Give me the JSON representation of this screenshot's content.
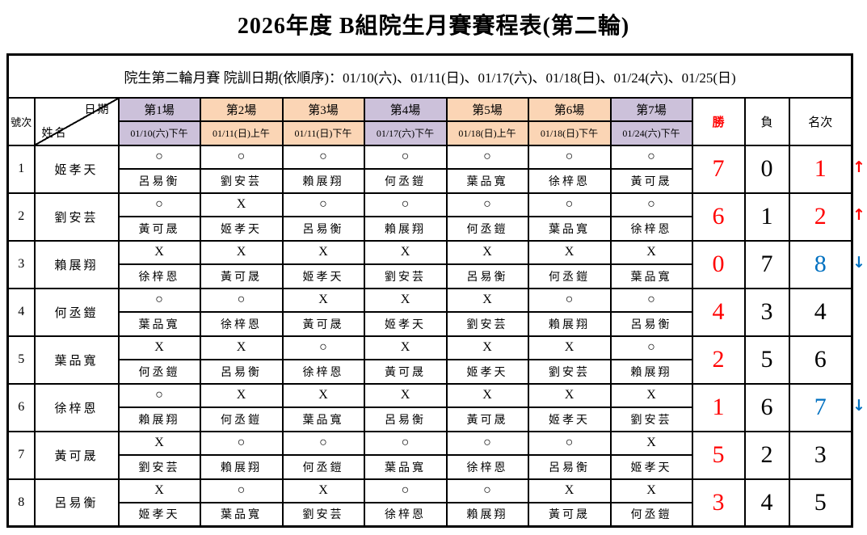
{
  "page": {
    "title": "2026年度 B組院生月賽賽程表(第二輪)",
    "subtitle": "院生第二輪月賽 院訓日期(依順序)：01/10(六)、01/11(日)、01/17(六)、01/18(日)、01/24(六)、01/25(日)"
  },
  "colors": {
    "saturday": "#ccc1da",
    "sunday": "#fbd5b5",
    "red": "#ff0000",
    "blue": "#0070c0",
    "black": "#000000"
  },
  "glyphs": {
    "win": "○",
    "loss": "X",
    "up": "↑",
    "down": "↓"
  },
  "table": {
    "corner": {
      "top_right": "日期",
      "bottom_left": "姓名"
    },
    "col_headers": {
      "number": "號次",
      "wins": "勝",
      "losses": "負",
      "rank": "名次"
    },
    "sessions": [
      {
        "label": "第1場",
        "date": "01/10(六)下午",
        "theme": "saturday"
      },
      {
        "label": "第2場",
        "date": "01/11(日)上午",
        "theme": "sunday"
      },
      {
        "label": "第3場",
        "date": "01/11(日)下午",
        "theme": "sunday"
      },
      {
        "label": "第4場",
        "date": "01/17(六)下午",
        "theme": "saturday"
      },
      {
        "label": "第5場",
        "date": "01/18(日)上午",
        "theme": "sunday"
      },
      {
        "label": "第6場",
        "date": "01/18(日)下午",
        "theme": "sunday"
      },
      {
        "label": "第7場",
        "date": "01/24(六)下午",
        "theme": "saturday"
      }
    ],
    "players": [
      {
        "no": "1",
        "name": "姬孝天",
        "games": [
          {
            "result": "○",
            "opponent": "呂易衡"
          },
          {
            "result": "○",
            "opponent": "劉安芸"
          },
          {
            "result": "○",
            "opponent": "賴展翔"
          },
          {
            "result": "○",
            "opponent": "何丞鎧"
          },
          {
            "result": "○",
            "opponent": "葉品寬"
          },
          {
            "result": "○",
            "opponent": "徐梓恩"
          },
          {
            "result": "○",
            "opponent": "黃可晟"
          }
        ],
        "wins": "7",
        "losses": "0",
        "rank": "1",
        "rank_color": "red",
        "arrow": "up"
      },
      {
        "no": "2",
        "name": "劉安芸",
        "games": [
          {
            "result": "○",
            "opponent": "黃可晟"
          },
          {
            "result": "X",
            "opponent": "姬孝天"
          },
          {
            "result": "○",
            "opponent": "呂易衡"
          },
          {
            "result": "○",
            "opponent": "賴展翔"
          },
          {
            "result": "○",
            "opponent": "何丞鎧"
          },
          {
            "result": "○",
            "opponent": "葉品寬"
          },
          {
            "result": "○",
            "opponent": "徐梓恩"
          }
        ],
        "wins": "6",
        "losses": "1",
        "rank": "2",
        "rank_color": "red",
        "arrow": "up"
      },
      {
        "no": "3",
        "name": "賴展翔",
        "games": [
          {
            "result": "X",
            "opponent": "徐梓恩"
          },
          {
            "result": "X",
            "opponent": "黃可晟"
          },
          {
            "result": "X",
            "opponent": "姬孝天"
          },
          {
            "result": "X",
            "opponent": "劉安芸"
          },
          {
            "result": "X",
            "opponent": "呂易衡"
          },
          {
            "result": "X",
            "opponent": "何丞鎧"
          },
          {
            "result": "X",
            "opponent": "葉品寬"
          }
        ],
        "wins": "0",
        "losses": "7",
        "rank": "8",
        "rank_color": "blue",
        "arrow": "down"
      },
      {
        "no": "4",
        "name": "何丞鎧",
        "games": [
          {
            "result": "○",
            "opponent": "葉品寬"
          },
          {
            "result": "○",
            "opponent": "徐梓恩"
          },
          {
            "result": "X",
            "opponent": "黃可晟"
          },
          {
            "result": "X",
            "opponent": "姬孝天"
          },
          {
            "result": "X",
            "opponent": "劉安芸"
          },
          {
            "result": "○",
            "opponent": "賴展翔"
          },
          {
            "result": "○",
            "opponent": "呂易衡"
          }
        ],
        "wins": "4",
        "losses": "3",
        "rank": "4",
        "rank_color": "black",
        "arrow": ""
      },
      {
        "no": "5",
        "name": "葉品寬",
        "games": [
          {
            "result": "X",
            "opponent": "何丞鎧"
          },
          {
            "result": "X",
            "opponent": "呂易衡"
          },
          {
            "result": "○",
            "opponent": "徐梓恩"
          },
          {
            "result": "X",
            "opponent": "黃可晟"
          },
          {
            "result": "X",
            "opponent": "姬孝天"
          },
          {
            "result": "X",
            "opponent": "劉安芸"
          },
          {
            "result": "○",
            "opponent": "賴展翔"
          }
        ],
        "wins": "2",
        "losses": "5",
        "rank": "6",
        "rank_color": "black",
        "arrow": ""
      },
      {
        "no": "6",
        "name": "徐梓恩",
        "games": [
          {
            "result": "○",
            "opponent": "賴展翔"
          },
          {
            "result": "X",
            "opponent": "何丞鎧"
          },
          {
            "result": "X",
            "opponent": "葉品寬"
          },
          {
            "result": "X",
            "opponent": "呂易衡"
          },
          {
            "result": "X",
            "opponent": "黃可晟"
          },
          {
            "result": "X",
            "opponent": "姬孝天"
          },
          {
            "result": "X",
            "opponent": "劉安芸"
          }
        ],
        "wins": "1",
        "losses": "6",
        "rank": "7",
        "rank_color": "blue",
        "arrow": "down"
      },
      {
        "no": "7",
        "name": "黃可晟",
        "games": [
          {
            "result": "X",
            "opponent": "劉安芸"
          },
          {
            "result": "○",
            "opponent": "賴展翔"
          },
          {
            "result": "○",
            "opponent": "何丞鎧"
          },
          {
            "result": "○",
            "opponent": "葉品寬"
          },
          {
            "result": "○",
            "opponent": "徐梓恩"
          },
          {
            "result": "○",
            "opponent": "呂易衡"
          },
          {
            "result": "X",
            "opponent": "姬孝天"
          }
        ],
        "wins": "5",
        "losses": "2",
        "rank": "3",
        "rank_color": "black",
        "arrow": ""
      },
      {
        "no": "8",
        "name": "呂易衡",
        "games": [
          {
            "result": "X",
            "opponent": "姬孝天"
          },
          {
            "result": "○",
            "opponent": "葉品寬"
          },
          {
            "result": "X",
            "opponent": "劉安芸"
          },
          {
            "result": "○",
            "opponent": "徐梓恩"
          },
          {
            "result": "○",
            "opponent": "賴展翔"
          },
          {
            "result": "X",
            "opponent": "黃可晟"
          },
          {
            "result": "X",
            "opponent": "何丞鎧"
          }
        ],
        "wins": "3",
        "losses": "4",
        "rank": "5",
        "rank_color": "black",
        "arrow": ""
      }
    ]
  }
}
